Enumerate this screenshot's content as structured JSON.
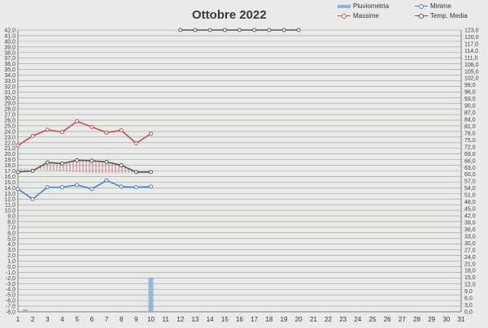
{
  "chart_data": {
    "type": "line",
    "title": "Ottobre 2022",
    "x": [
      1,
      2,
      3,
      4,
      5,
      6,
      7,
      8,
      9,
      10,
      11,
      12,
      13,
      14,
      15,
      16,
      17,
      18,
      19,
      20,
      21,
      22,
      23,
      24,
      25,
      26,
      27,
      28,
      29,
      30,
      31
    ],
    "ylim": [
      -8,
      42
    ],
    "y2lim": [
      0,
      123
    ],
    "y_ticks_step": 1,
    "y2_ticks_step": 3,
    "grid": true,
    "legend_position": "top-right",
    "series": [
      {
        "name": "Pluviometria",
        "type": "bar",
        "axis": "y2",
        "color": "#8ab6dc",
        "points": [
          [
            1.5,
            1.0
          ],
          [
            10,
            15.0
          ]
        ]
      },
      {
        "name": "Massime",
        "type": "line",
        "axis": "y",
        "color": "#c0505a",
        "points": [
          [
            1,
            21.5
          ],
          [
            2,
            23.2
          ],
          [
            3,
            24.3
          ],
          [
            4,
            23.9
          ],
          [
            5,
            25.8
          ],
          [
            6,
            24.8
          ],
          [
            7,
            23.8
          ],
          [
            8,
            24.2
          ],
          [
            9,
            21.9
          ],
          [
            10,
            23.6
          ]
        ]
      },
      {
        "name": "Minime",
        "type": "line",
        "axis": "y",
        "color": "#4f81bd",
        "points": [
          [
            1,
            13.8
          ],
          [
            2,
            12.0
          ],
          [
            3,
            14.1
          ],
          [
            4,
            14.1
          ],
          [
            5,
            14.5
          ],
          [
            6,
            13.8
          ],
          [
            7,
            15.3
          ],
          [
            8,
            14.2
          ],
          [
            9,
            14.1
          ],
          [
            10,
            14.2
          ]
        ]
      },
      {
        "name": "Temp. Media",
        "type": "line",
        "axis": "y",
        "color": "#555555",
        "points": [
          [
            1,
            16.8
          ],
          [
            2,
            17.0
          ],
          [
            3,
            18.5
          ],
          [
            4,
            18.3
          ],
          [
            5,
            18.9
          ],
          [
            6,
            18.8
          ],
          [
            7,
            18.6
          ],
          [
            8,
            18.0
          ],
          [
            9,
            16.8
          ],
          [
            10,
            16.8
          ],
          [
            12,
            42.0
          ],
          [
            13,
            42.0
          ],
          [
            14,
            42.0
          ],
          [
            15,
            42.0
          ],
          [
            16,
            42.0
          ],
          [
            17,
            42.0
          ],
          [
            18,
            42.0
          ],
          [
            19,
            42.0
          ],
          [
            20,
            42.0
          ]
        ]
      },
      {
        "name": "",
        "type": "line",
        "axis": "y",
        "color": "#333333",
        "points": [
          [
            1,
            17.5
          ],
          [
            6,
            16.6
          ]
        ]
      }
    ]
  }
}
